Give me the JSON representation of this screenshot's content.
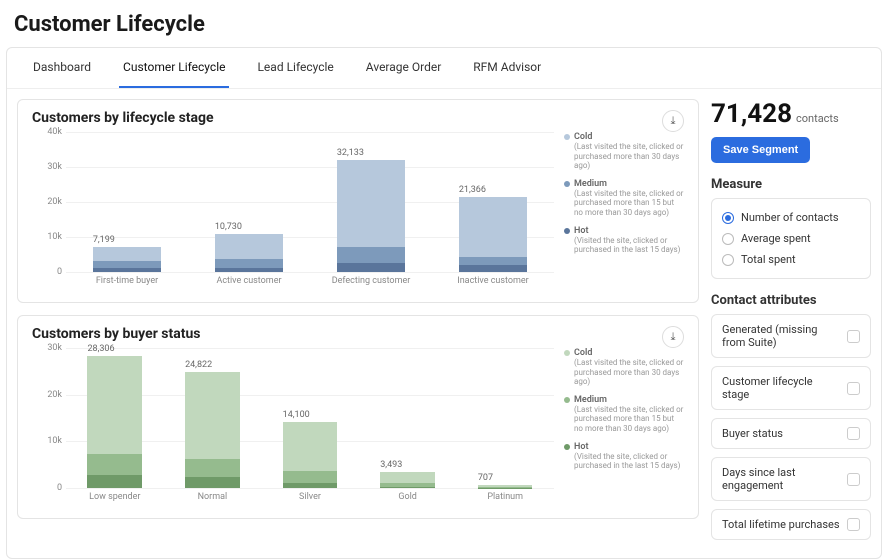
{
  "pageTitle": "Customer Lifecycle",
  "tabs": [
    "Dashboard",
    "Customer Lifecycle",
    "Lead Lifecycle",
    "Average Order",
    "RFM Advisor"
  ],
  "activeTab": 1,
  "topMetric": {
    "value": "71,428",
    "unit": "contacts"
  },
  "saveBtn": "Save Segment",
  "measure": {
    "label": "Measure",
    "options": [
      "Number of contacts",
      "Average spent",
      "Total spent"
    ],
    "selected": 0
  },
  "contactAttributes": {
    "label": "Contact attributes",
    "items": [
      "Generated (missing from Suite)",
      "Customer lifecycle stage",
      "Buyer status",
      "Days since last engagement",
      "Total lifetime purchases"
    ]
  },
  "legend": [
    {
      "title": "Cold",
      "desc": "(Last visited the site, clicked or purchased more than 30 days ago)"
    },
    {
      "title": "Medium",
      "desc": "(Last visited the site, clicked or purchased more than 15 but no more than 30 days ago)"
    },
    {
      "title": "Hot",
      "desc": "(Visited the site, clicked or purchased in the last 15 days)"
    }
  ],
  "chart1": {
    "title": "Customers by lifecycle stage",
    "type": "stacked-bar",
    "ymax": 40000,
    "ytick_step": 10000,
    "yformat": "k",
    "categories": [
      "First-time buyer",
      "Active customer",
      "Defecting customer",
      "Inactive customer"
    ],
    "totals": [
      "7,199",
      "10,730",
      "32,133",
      "21,366"
    ],
    "series_colors": {
      "cold": "#b6c8dc",
      "medium": "#7d9abb",
      "hot": "#5a759b"
    },
    "legend_colors": [
      "#b6c8dc",
      "#7d9abb",
      "#5a759b"
    ],
    "background": "#ffffff",
    "grid_color": "#f0f0f0",
    "stacks": [
      {
        "cold": 4000,
        "medium": 2000,
        "hot": 1199
      },
      {
        "cold": 7000,
        "medium": 2500,
        "hot": 1230
      },
      {
        "cold": 25000,
        "medium": 4500,
        "hot": 2633
      },
      {
        "cold": 17000,
        "medium": 2500,
        "hot": 1866
      }
    ]
  },
  "chart2": {
    "title": "Customers by buyer status",
    "type": "stacked-bar",
    "ymax": 30000,
    "ytick_step": 10000,
    "yformat": "k",
    "categories": [
      "Low spender",
      "Normal",
      "Silver",
      "Gold",
      "Platinum"
    ],
    "totals": [
      "28,306",
      "24,822",
      "14,100",
      "3,493",
      "707"
    ],
    "series_colors": {
      "cold": "#c1d8bd",
      "medium": "#95bb8e",
      "hot": "#6f9a68"
    },
    "legend_colors": [
      "#c1d8bd",
      "#95bb8e",
      "#6f9a68"
    ],
    "background": "#ffffff",
    "grid_color": "#f0f0f0",
    "stacks": [
      {
        "cold": 21000,
        "medium": 4500,
        "hot": 2806
      },
      {
        "cold": 18500,
        "medium": 4000,
        "hot": 2322
      },
      {
        "cold": 10500,
        "medium": 2500,
        "hot": 1100
      },
      {
        "cold": 2500,
        "medium": 700,
        "hot": 293
      },
      {
        "cold": 500,
        "medium": 150,
        "hot": 57
      }
    ]
  }
}
